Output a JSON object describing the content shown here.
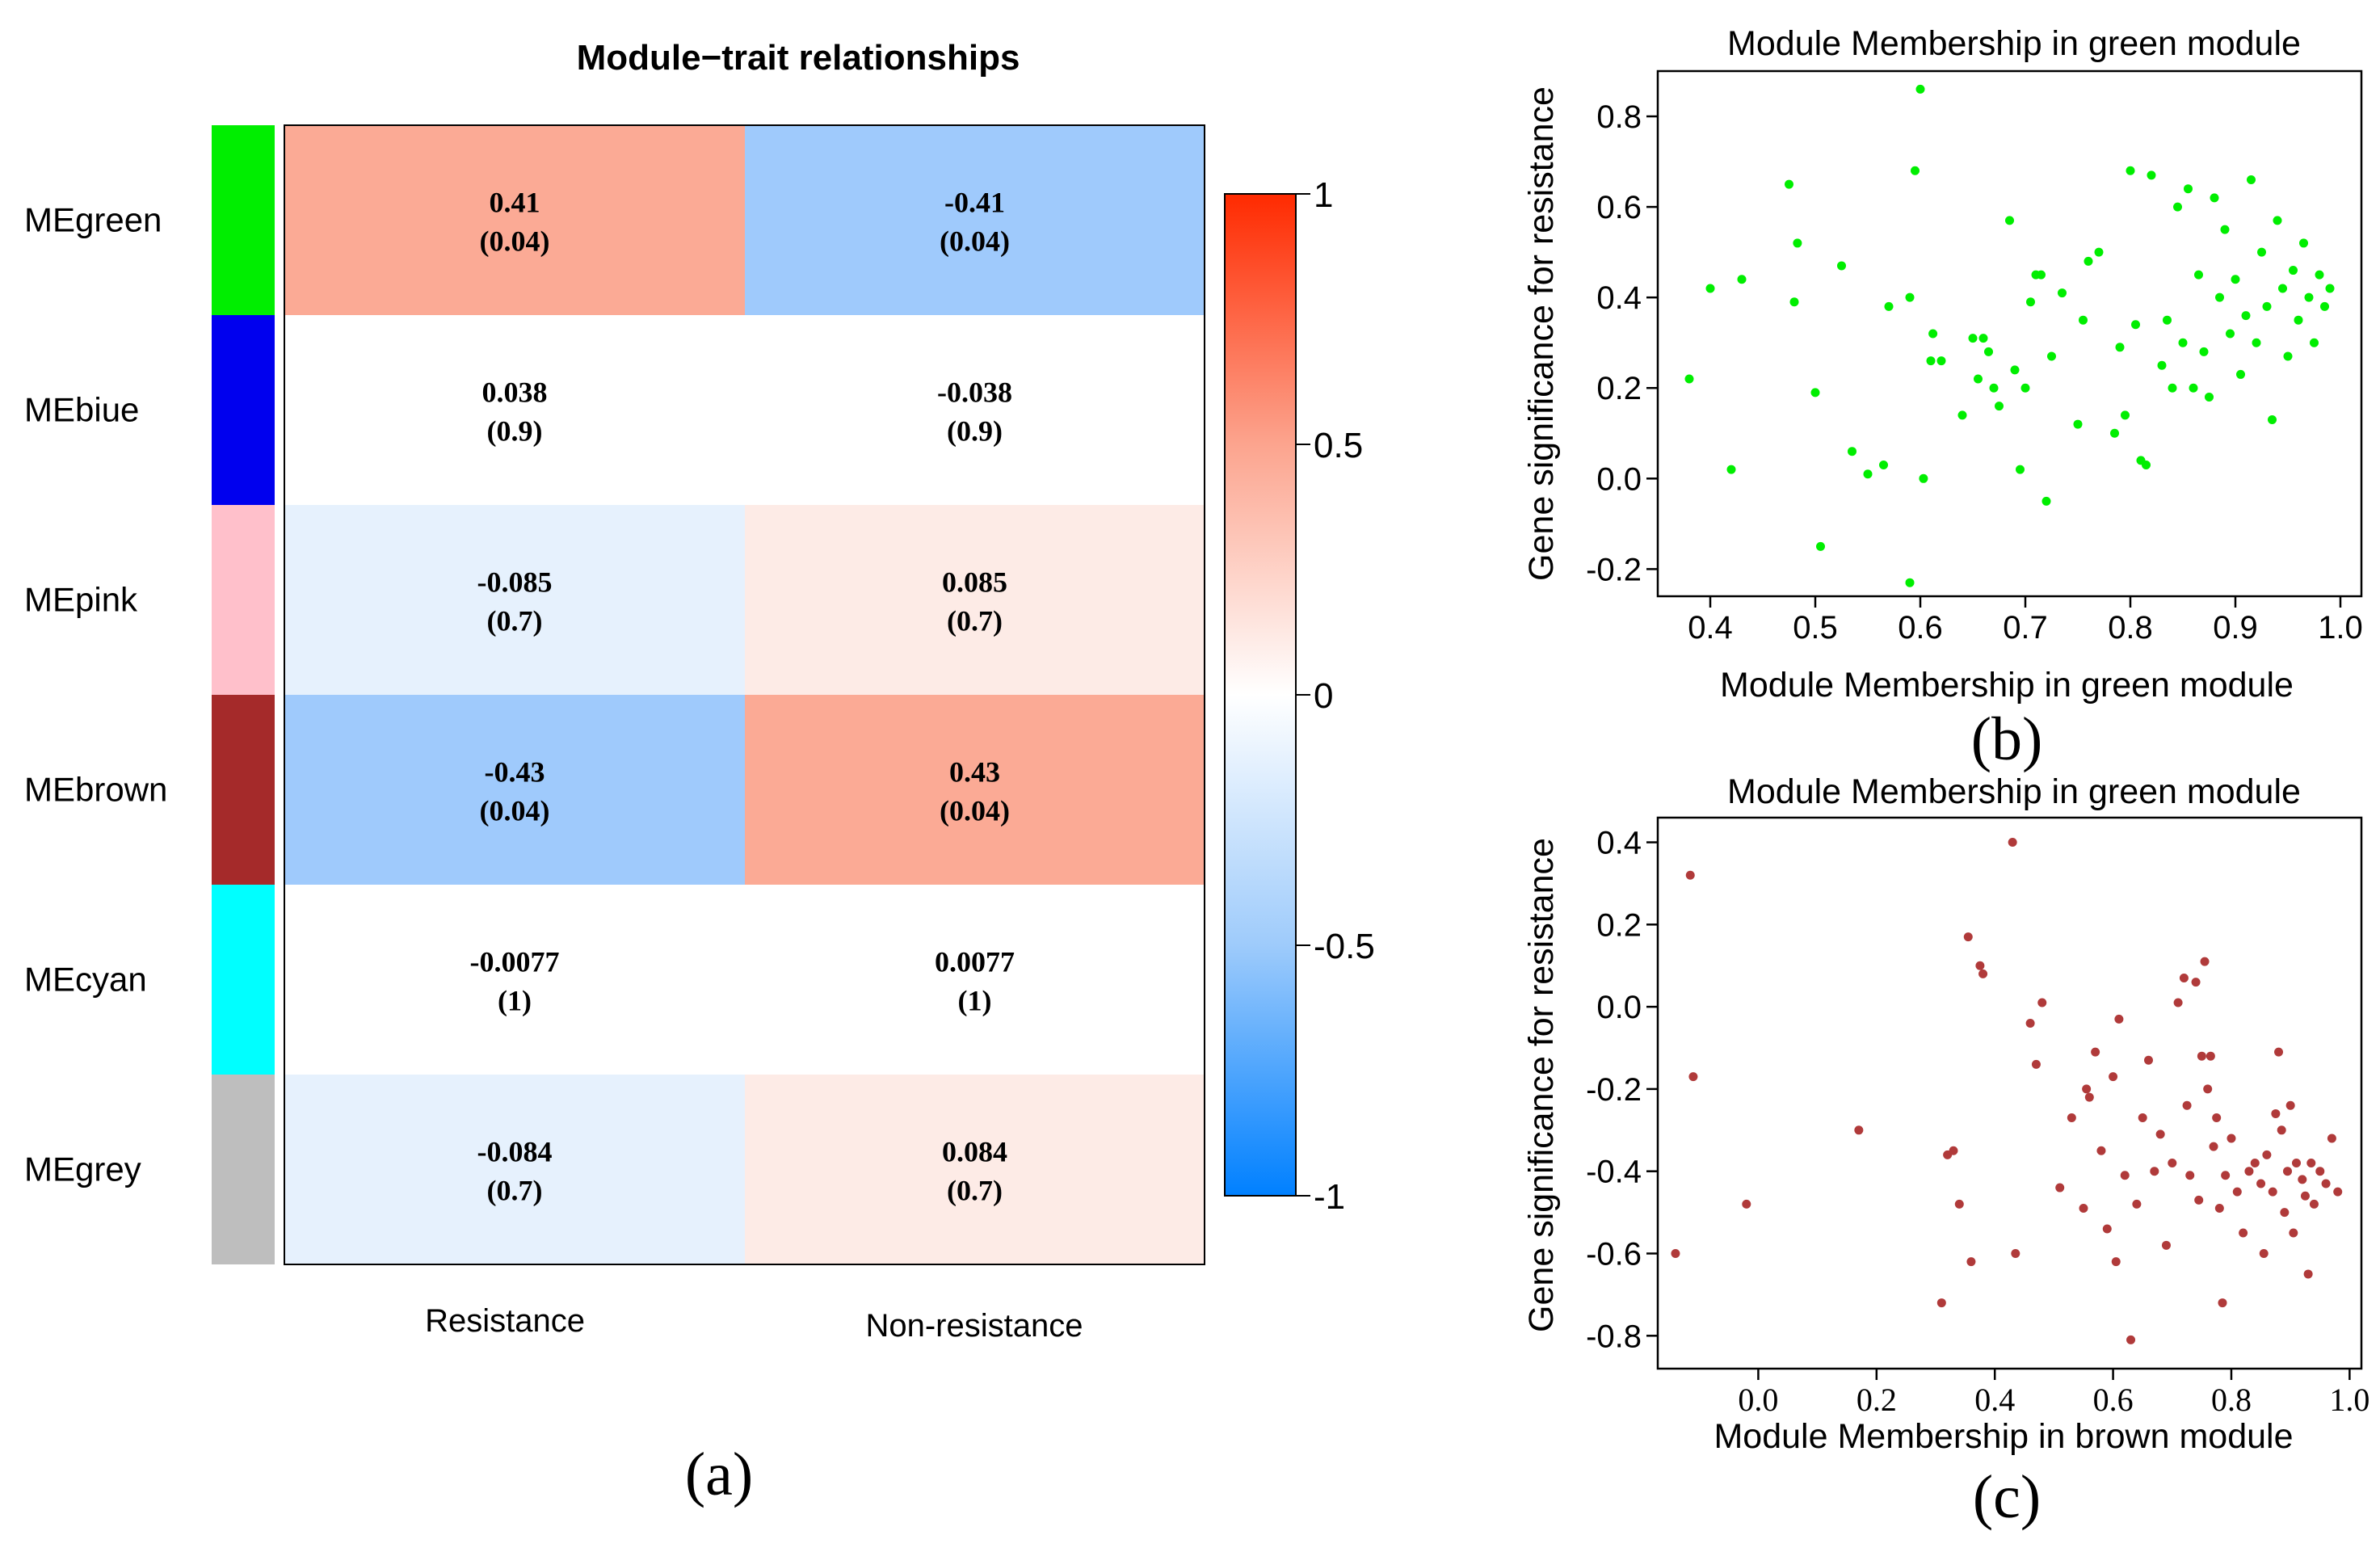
{
  "panel_a": {
    "label": "(a)",
    "chart_data": {
      "type": "heatmap",
      "title": "Module−trait relationships",
      "rows": [
        "MEgreen",
        "MEbiue",
        "MEpink",
        "MEbrown",
        "MEcyan",
        "MEgrey"
      ],
      "row_colors": [
        "#00ee00",
        "#0000ee",
        "#ffc0cb",
        "#a52a2a",
        "#00ffff",
        "#bebebe"
      ],
      "columns": [
        "Resistance",
        "Non-resistance"
      ],
      "values": [
        [
          0.41,
          -0.41
        ],
        [
          0.038,
          -0.038
        ],
        [
          -0.085,
          0.085
        ],
        [
          -0.43,
          0.43
        ],
        [
          -0.0077,
          0.0077
        ],
        [
          -0.084,
          0.084
        ]
      ],
      "pvalues": [
        [
          "(0.04)",
          "(0.04)"
        ],
        [
          "(0.9)",
          "(0.9)"
        ],
        [
          "(0.7)",
          "(0.7)"
        ],
        [
          "(0.04)",
          "(0.04)"
        ],
        [
          "(1)",
          "(1)"
        ],
        [
          "(0.7)",
          "(0.7)"
        ]
      ],
      "cell_text": [
        [
          "0.41",
          "-0.41"
        ],
        [
          "0.038",
          "-0.038"
        ],
        [
          "-0.085",
          "0.085"
        ],
        [
          "-0.43",
          "0.43"
        ],
        [
          "-0.0077",
          "0.0077"
        ],
        [
          "-0.084",
          "0.084"
        ]
      ],
      "cell_colors": [
        [
          "#fbaa95",
          "#9fcafc"
        ],
        [
          "#ffffff",
          "#ffffff"
        ],
        [
          "#e6f1fd",
          "#fdebe6"
        ],
        [
          "#9fcafc",
          "#fbaa95"
        ],
        [
          "#ffffff",
          "#ffffff"
        ],
        [
          "#e6f1fd",
          "#fdebe6"
        ]
      ],
      "colorbar": {
        "range": [
          -1,
          1
        ],
        "ticks": [
          1,
          0.5,
          0,
          -0.5,
          -1
        ],
        "tick_labels": [
          "1",
          "0.5",
          "0",
          "-0.5",
          "-1"
        ],
        "colors": [
          "#ff2a00",
          "#fca48e",
          "#ffffff",
          "#9ecbfb",
          "#0080ff"
        ]
      }
    }
  },
  "panel_b": {
    "label": "(b)",
    "chart_data": {
      "type": "scatter",
      "title": "Module Membership in green module",
      "xlabel": "Module Membership in green module",
      "ylabel": "Gene significance for resistance",
      "xlim": [
        0.35,
        1.02
      ],
      "ylim": [
        -0.26,
        0.9
      ],
      "xticks": [
        0.4,
        0.5,
        0.6,
        0.7,
        0.8,
        0.9,
        1.0
      ],
      "xtick_labels": [
        "0.4",
        "0.5",
        "0.6",
        "0.7",
        "0.8",
        "0.9",
        "1.0"
      ],
      "yticks": [
        -0.2,
        0.0,
        0.2,
        0.4,
        0.6,
        0.8
      ],
      "ytick_labels": [
        "-0.2",
        "0.0",
        "0.2",
        "0.4",
        "0.6",
        "0.8"
      ],
      "color": "#00ee00",
      "points": [
        [
          0.38,
          0.22
        ],
        [
          0.4,
          0.42
        ],
        [
          0.42,
          0.02
        ],
        [
          0.43,
          0.44
        ],
        [
          0.475,
          0.65
        ],
        [
          0.48,
          0.39
        ],
        [
          0.483,
          0.52
        ],
        [
          0.5,
          0.19
        ],
        [
          0.505,
          -0.15
        ],
        [
          0.525,
          0.47
        ],
        [
          0.535,
          0.06
        ],
        [
          0.55,
          0.01
        ],
        [
          0.565,
          0.03
        ],
        [
          0.57,
          0.38
        ],
        [
          0.59,
          0.4
        ],
        [
          0.59,
          -0.23
        ],
        [
          0.595,
          0.68
        ],
        [
          0.6,
          0.86
        ],
        [
          0.603,
          0.0
        ],
        [
          0.61,
          0.26
        ],
        [
          0.612,
          0.32
        ],
        [
          0.62,
          0.26
        ],
        [
          0.64,
          0.14
        ],
        [
          0.65,
          0.31
        ],
        [
          0.655,
          0.22
        ],
        [
          0.66,
          0.31
        ],
        [
          0.665,
          0.28
        ],
        [
          0.67,
          0.2
        ],
        [
          0.675,
          0.16
        ],
        [
          0.685,
          0.57
        ],
        [
          0.69,
          0.24
        ],
        [
          0.695,
          0.02
        ],
        [
          0.7,
          0.2
        ],
        [
          0.705,
          0.39
        ],
        [
          0.71,
          0.45
        ],
        [
          0.715,
          0.45
        ],
        [
          0.72,
          -0.05
        ],
        [
          0.725,
          0.27
        ],
        [
          0.735,
          0.41
        ],
        [
          0.75,
          0.12
        ],
        [
          0.755,
          0.35
        ],
        [
          0.76,
          0.48
        ],
        [
          0.77,
          0.5
        ],
        [
          0.785,
          0.1
        ],
        [
          0.79,
          0.29
        ],
        [
          0.795,
          0.14
        ],
        [
          0.8,
          0.68
        ],
        [
          0.805,
          0.34
        ],
        [
          0.81,
          0.04
        ],
        [
          0.815,
          0.03
        ],
        [
          0.82,
          0.67
        ],
        [
          0.83,
          0.25
        ],
        [
          0.835,
          0.35
        ],
        [
          0.84,
          0.2
        ],
        [
          0.845,
          0.6
        ],
        [
          0.85,
          0.3
        ],
        [
          0.855,
          0.64
        ],
        [
          0.86,
          0.2
        ],
        [
          0.865,
          0.45
        ],
        [
          0.87,
          0.28
        ],
        [
          0.875,
          0.18
        ],
        [
          0.88,
          0.62
        ],
        [
          0.885,
          0.4
        ],
        [
          0.89,
          0.55
        ],
        [
          0.895,
          0.32
        ],
        [
          0.9,
          0.44
        ],
        [
          0.905,
          0.23
        ],
        [
          0.91,
          0.36
        ],
        [
          0.915,
          0.66
        ],
        [
          0.92,
          0.3
        ],
        [
          0.925,
          0.5
        ],
        [
          0.93,
          0.38
        ],
        [
          0.935,
          0.13
        ],
        [
          0.94,
          0.57
        ],
        [
          0.945,
          0.42
        ],
        [
          0.95,
          0.27
        ],
        [
          0.955,
          0.46
        ],
        [
          0.96,
          0.35
        ],
        [
          0.965,
          0.52
        ],
        [
          0.97,
          0.4
        ],
        [
          0.975,
          0.3
        ],
        [
          0.98,
          0.45
        ],
        [
          0.985,
          0.38
        ],
        [
          0.99,
          0.42
        ]
      ]
    }
  },
  "panel_c": {
    "label": "(c)",
    "chart_data": {
      "type": "scatter",
      "title": "Module Membership in green module",
      "xlabel": "Module Membership in brown module",
      "ylabel": "Gene significance for resistance",
      "xlim": [
        -0.17,
        1.02
      ],
      "ylim": [
        -0.88,
        0.46
      ],
      "xticks": [
        0.0,
        0.2,
        0.4,
        0.6,
        0.8,
        1.0
      ],
      "xtick_labels": [
        "0.0",
        "0.2",
        "0.4",
        "0.6",
        "0.8",
        "1.0"
      ],
      "yticks": [
        -0.8,
        -0.6,
        -0.4,
        -0.2,
        0.0,
        0.2,
        0.4
      ],
      "ytick_labels": [
        "-0.8",
        "-0.6",
        "-0.4",
        "-0.2",
        "0.0",
        "0.2",
        "0.4"
      ],
      "color": "#b03a3a",
      "points": [
        [
          -0.14,
          -0.6
        ],
        [
          -0.115,
          0.32
        ],
        [
          -0.11,
          -0.17
        ],
        [
          -0.02,
          -0.48
        ],
        [
          0.17,
          -0.3
        ],
        [
          0.31,
          -0.72
        ],
        [
          0.32,
          -0.36
        ],
        [
          0.33,
          -0.35
        ],
        [
          0.34,
          -0.48
        ],
        [
          0.355,
          0.17
        ],
        [
          0.36,
          -0.62
        ],
        [
          0.375,
          0.1
        ],
        [
          0.38,
          0.08
        ],
        [
          0.43,
          0.4
        ],
        [
          0.435,
          -0.6
        ],
        [
          0.46,
          -0.04
        ],
        [
          0.47,
          -0.14
        ],
        [
          0.48,
          0.01
        ],
        [
          0.51,
          -0.44
        ],
        [
          0.53,
          -0.27
        ],
        [
          0.55,
          -0.49
        ],
        [
          0.555,
          -0.2
        ],
        [
          0.56,
          -0.22
        ],
        [
          0.57,
          -0.11
        ],
        [
          0.58,
          -0.35
        ],
        [
          0.59,
          -0.54
        ],
        [
          0.6,
          -0.17
        ],
        [
          0.605,
          -0.62
        ],
        [
          0.61,
          -0.03
        ],
        [
          0.62,
          -0.41
        ],
        [
          0.63,
          -0.81
        ],
        [
          0.64,
          -0.48
        ],
        [
          0.65,
          -0.27
        ],
        [
          0.66,
          -0.13
        ],
        [
          0.67,
          -0.4
        ],
        [
          0.68,
          -0.31
        ],
        [
          0.69,
          -0.58
        ],
        [
          0.7,
          -0.38
        ],
        [
          0.71,
          0.01
        ],
        [
          0.72,
          0.07
        ],
        [
          0.725,
          -0.24
        ],
        [
          0.73,
          -0.41
        ],
        [
          0.74,
          0.06
        ],
        [
          0.745,
          -0.47
        ],
        [
          0.75,
          -0.12
        ],
        [
          0.755,
          0.11
        ],
        [
          0.76,
          -0.2
        ],
        [
          0.765,
          -0.12
        ],
        [
          0.77,
          -0.34
        ],
        [
          0.775,
          -0.27
        ],
        [
          0.78,
          -0.49
        ],
        [
          0.785,
          -0.72
        ],
        [
          0.79,
          -0.41
        ],
        [
          0.8,
          -0.32
        ],
        [
          0.81,
          -0.45
        ],
        [
          0.82,
          -0.55
        ],
        [
          0.83,
          -0.4
        ],
        [
          0.84,
          -0.38
        ],
        [
          0.85,
          -0.43
        ],
        [
          0.855,
          -0.6
        ],
        [
          0.86,
          -0.36
        ],
        [
          0.87,
          -0.45
        ],
        [
          0.875,
          -0.26
        ],
        [
          0.88,
          -0.11
        ],
        [
          0.885,
          -0.3
        ],
        [
          0.89,
          -0.5
        ],
        [
          0.895,
          -0.4
        ],
        [
          0.9,
          -0.24
        ],
        [
          0.905,
          -0.55
        ],
        [
          0.91,
          -0.38
        ],
        [
          0.92,
          -0.42
        ],
        [
          0.925,
          -0.46
        ],
        [
          0.93,
          -0.65
        ],
        [
          0.935,
          -0.38
        ],
        [
          0.94,
          -0.48
        ],
        [
          0.95,
          -0.4
        ],
        [
          0.96,
          -0.43
        ],
        [
          0.97,
          -0.32
        ],
        [
          0.98,
          -0.45
        ]
      ]
    }
  }
}
